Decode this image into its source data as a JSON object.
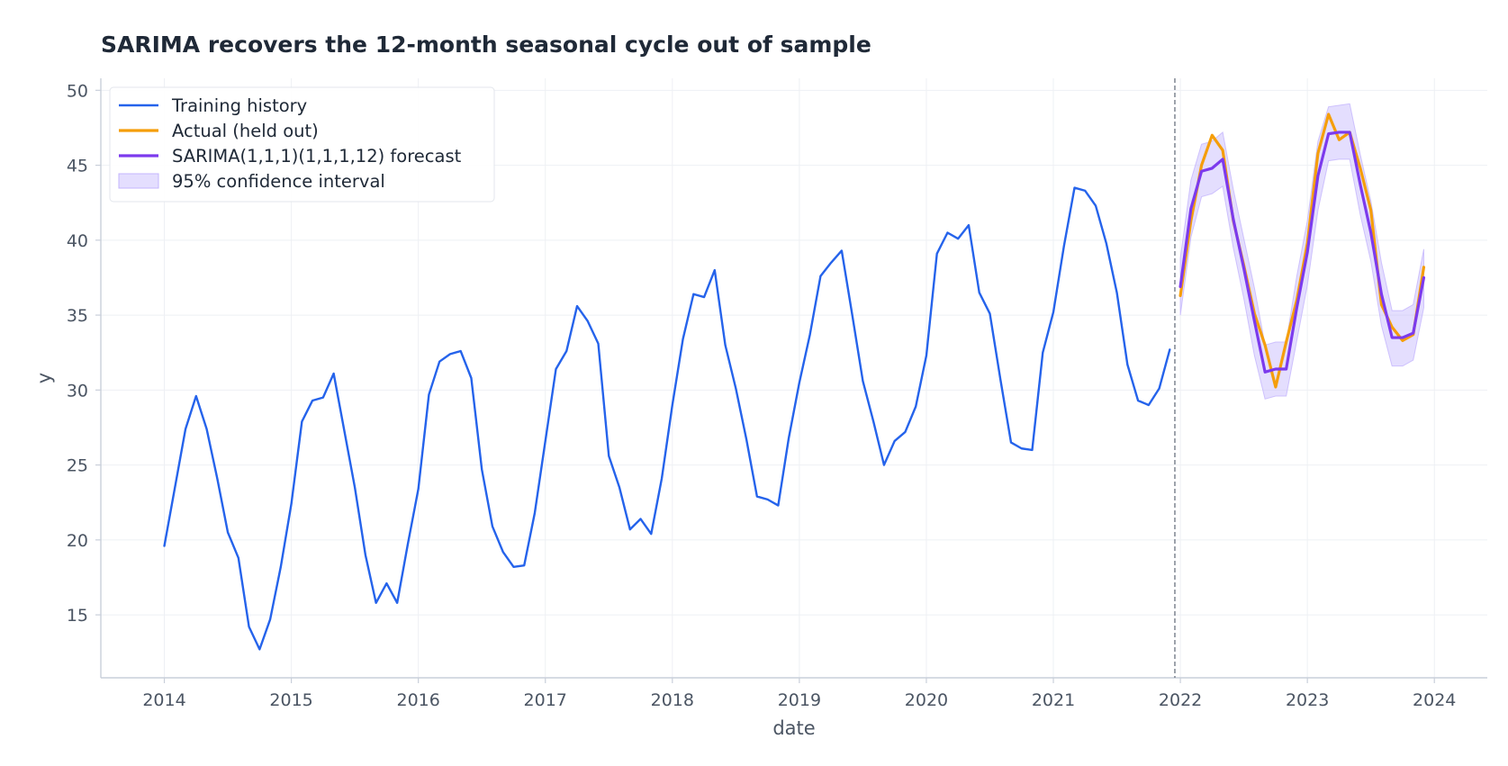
{
  "chart_data": {
    "type": "line",
    "title": "SARIMA recovers the 12-month seasonal cycle out of sample",
    "xlabel": "date",
    "ylabel": "y",
    "xlim": [
      "2013-07-01",
      "2024-06-01"
    ],
    "ylim": [
      10.8,
      50.8
    ],
    "x_ticks": [
      "2014",
      "2015",
      "2016",
      "2017",
      "2018",
      "2019",
      "2020",
      "2021",
      "2022",
      "2023",
      "2024"
    ],
    "y_ticks": [
      "15",
      "20",
      "25",
      "30",
      "35",
      "40",
      "45",
      "50"
    ],
    "grid": true,
    "legend_position": "top-left",
    "split_date": "2021-12-01",
    "colors": {
      "training": "#2563eb",
      "actual": "#f59e0b",
      "forecast": "#7c3aed",
      "interval": "#c4b5fd",
      "split_line": "#6b7280"
    },
    "series": [
      {
        "name": "Training history",
        "key": "training",
        "start": "2014-01",
        "frequency": "monthly",
        "values": [
          19.6,
          23.5,
          27.4,
          29.6,
          27.4,
          24.1,
          20.5,
          18.8,
          14.2,
          12.7,
          14.7,
          18.2,
          22.4,
          27.9,
          29.3,
          29.5,
          31.1,
          27.3,
          23.5,
          19.0,
          15.8,
          17.1,
          15.8,
          19.7,
          23.4,
          29.7,
          31.9,
          32.4,
          32.6,
          30.8,
          24.7,
          20.9,
          19.2,
          18.2,
          18.3,
          21.8,
          26.6,
          31.4,
          32.6,
          35.6,
          34.6,
          33.1,
          25.6,
          23.5,
          20.7,
          21.4,
          20.4,
          24.1,
          29.0,
          33.4,
          36.4,
          36.2,
          38.0,
          33.0,
          30.1,
          26.7,
          22.9,
          22.7,
          22.3,
          26.8,
          30.5,
          33.7,
          37.6,
          38.5,
          39.3,
          35.0,
          30.6,
          27.9,
          25.0,
          26.6,
          27.2,
          28.9,
          32.3,
          39.1,
          40.5,
          40.1,
          41.0,
          36.5,
          35.1,
          30.7,
          26.5,
          26.1,
          26.0,
          32.5,
          35.2,
          39.6,
          43.5,
          43.3,
          42.3,
          39.8,
          36.5,
          31.7,
          29.3,
          29.0,
          30.1,
          32.7
        ]
      },
      {
        "name": "Actual (held out)",
        "key": "actual",
        "start": "2022-01",
        "frequency": "monthly",
        "values": [
          36.3,
          41.3,
          45.0,
          47.0,
          46.0,
          41.3,
          38.3,
          35.1,
          33.0,
          30.2,
          33.2,
          36.0,
          39.8,
          45.8,
          48.4,
          46.7,
          47.2,
          44.8,
          42.0,
          35.7,
          34.2,
          33.3,
          33.7,
          38.2
        ]
      },
      {
        "name": "SARIMA(1,1,1)(1,1,1,12) forecast",
        "key": "forecast",
        "start": "2022-01",
        "frequency": "monthly",
        "values": [
          36.9,
          42.1,
          44.6,
          44.8,
          45.4,
          41.4,
          38.1,
          34.6,
          31.2,
          31.4,
          31.4,
          35.5,
          39.2,
          44.3,
          47.1,
          47.2,
          47.2,
          43.7,
          40.5,
          36.4,
          33.5,
          33.5,
          33.8,
          37.5
        ]
      },
      {
        "name": "95% confidence interval",
        "key": "interval",
        "type": "area",
        "start": "2022-01",
        "frequency": "monthly",
        "lower": [
          35.0,
          40.2,
          42.9,
          43.1,
          43.6,
          39.5,
          36.1,
          32.3,
          29.4,
          29.6,
          29.6,
          33.3,
          37.0,
          42.0,
          45.3,
          45.4,
          45.4,
          41.7,
          38.6,
          34.3,
          31.6,
          31.6,
          32.0,
          35.5
        ],
        "upper": [
          38.8,
          44.0,
          46.4,
          46.6,
          47.2,
          43.4,
          40.1,
          36.8,
          33.0,
          33.2,
          33.2,
          37.6,
          41.3,
          46.6,
          48.9,
          49.0,
          49.1,
          45.7,
          42.6,
          38.5,
          35.3,
          35.3,
          35.7,
          39.4
        ]
      }
    ]
  }
}
